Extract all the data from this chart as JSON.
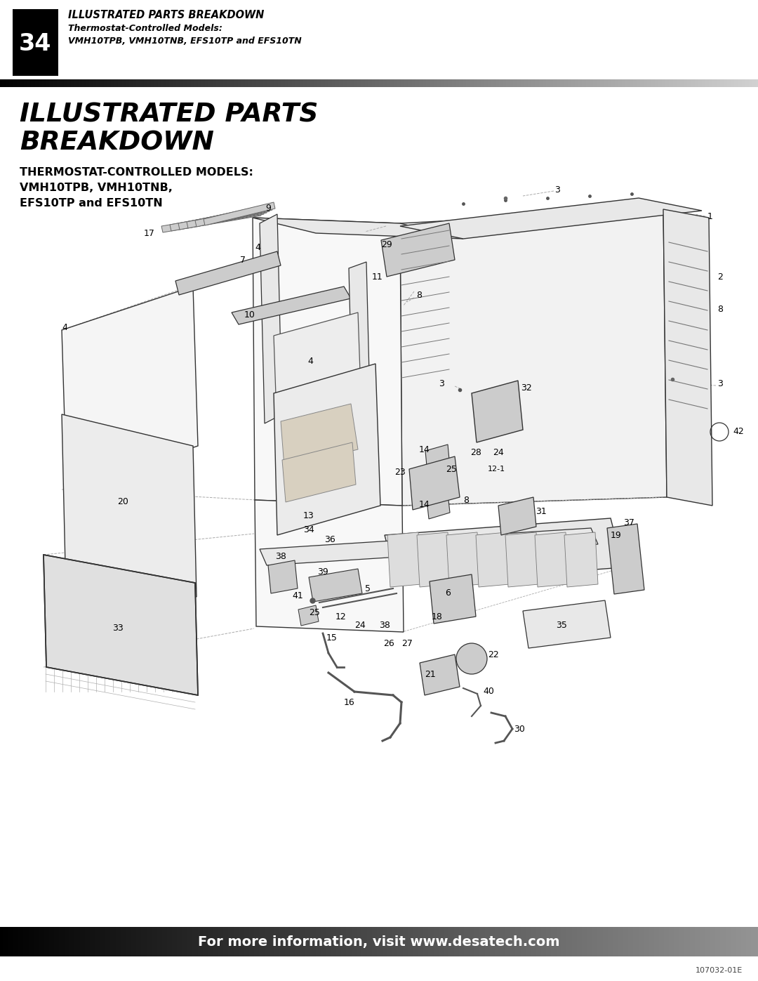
{
  "page_number": "34",
  "header_title": "ILLUSTRATED PARTS BREAKDOWN",
  "header_subtitle1": "Thermostat-Controlled Models:",
  "header_subtitle2": "VMH10TPB, VMH10TNB, EFS10TP and EFS10TN",
  "main_title_line1": "ILLUSTRATED PARTS",
  "main_title_line2": "BREAKDOWN",
  "subtitle_line1": "THERMOSTAT-CONTROLLED MODELS:",
  "subtitle_line2": "VMH10TPB, VMH10TNB,",
  "subtitle_line3": "EFS10TP and EFS10TN",
  "footer_text": "For more information, visit www.desatech.com",
  "doc_number": "107032-01E",
  "bg_color": "#ffffff",
  "header_bg": "#000000",
  "header_text_color": "#ffffff",
  "line_color": "#333333",
  "light_gray": "#e8e8e8",
  "mid_gray": "#cccccc",
  "dark_gray": "#999999"
}
